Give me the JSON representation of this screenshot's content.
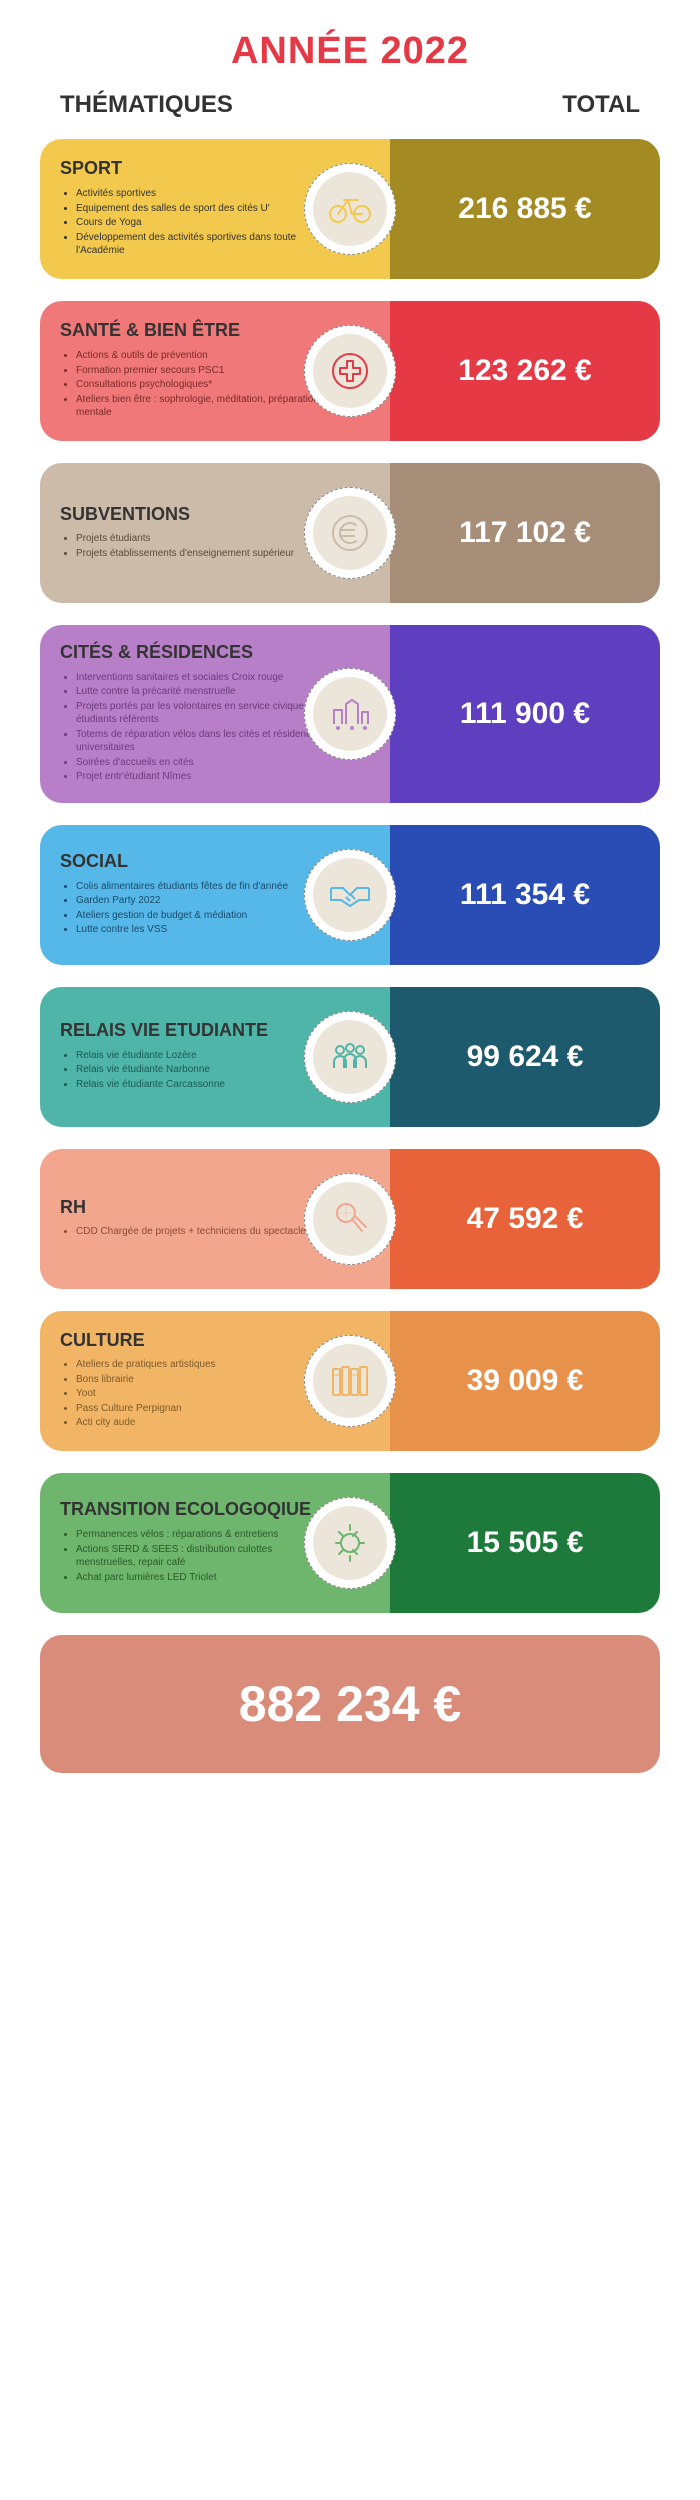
{
  "title": "ANNÉE 2022",
  "title_color": "#e63946",
  "col_left": "THÉMATIQUES",
  "col_right": "TOTAL",
  "header_color": "#333333",
  "icon_bg": "#ece6da",
  "categories": [
    {
      "name": "SPORT",
      "amount": "216 885 €",
      "left_bg": "#f2c94c",
      "right_bg": "#a38a22",
      "title_color": "#333333",
      "text_color": "#333333",
      "icon": "bike",
      "icon_color": "#f2c94c",
      "items": [
        "Activités sportives",
        "Equipement des salles de sport des cités U'",
        "Cours de Yoga",
        "Développement des activités sportives dans toute l'Académie"
      ]
    },
    {
      "name": "SANTÉ & BIEN ÊTRE",
      "amount": "123 262 €",
      "left_bg": "#f07878",
      "right_bg": "#e63946",
      "title_color": "#333333",
      "text_color": "#7a2a2a",
      "icon": "cross",
      "icon_color": "#e63946",
      "items": [
        "Actions & outils de prévention",
        "Formation premier secours PSC1",
        "Consultations psychologiques*",
        "Ateliers bien être : sophrologie, méditation, préparation mentale"
      ]
    },
    {
      "name": "SUBVENTIONS",
      "amount": "117 102 €",
      "left_bg": "#cbbba8",
      "right_bg": "#a68e78",
      "title_color": "#333333",
      "text_color": "#5a4a3a",
      "icon": "euro",
      "icon_color": "#cbbba8",
      "items": [
        "Projets étudiants",
        "Projets établissements d'enseignement supérieur"
      ]
    },
    {
      "name": "CITÉS & RÉSIDENCES",
      "amount": "111 900 €",
      "left_bg": "#b87fc9",
      "right_bg": "#5e3fbf",
      "title_color": "#333333",
      "text_color": "#6a3a7a",
      "icon": "city",
      "icon_color": "#b87fc9",
      "items": [
        "Interventions sanitaires et sociales Croix rouge",
        "Lutte contre la précarité menstruelle",
        "Projets portés par les volontaires en service civique et étudiants référents",
        "Totems de réparation vélos dans les cités et résidences universitaires",
        "Soirées d'accueils en cités",
        "Projet entr'étudiant Nîmes"
      ]
    },
    {
      "name": "SOCIAL",
      "amount": "111 354 €",
      "left_bg": "#56b8e8",
      "right_bg": "#2a4db5",
      "title_color": "#333333",
      "text_color": "#1a4a6a",
      "icon": "handshake",
      "icon_color": "#56b8e8",
      "items": [
        "Colis alimentaires étudiants fêtes de fin d'année",
        "Garden Party 2022",
        "Ateliers gestion de budget & médiation",
        "Lutte contre les VSS"
      ]
    },
    {
      "name": "RELAIS VIE ETUDIANTE",
      "amount": "99 624 €",
      "left_bg": "#4fb5a8",
      "right_bg": "#1e5a6e",
      "title_color": "#333333",
      "text_color": "#1a5a52",
      "icon": "people",
      "icon_color": "#4fb5a8",
      "items": [
        "Relais vie étudiante Lozère",
        "Relais vie étudiante Narbonne",
        "Relais vie étudiante Carcassonne"
      ]
    },
    {
      "name": "RH",
      "amount": "47 592 €",
      "left_bg": "#f2a68e",
      "right_bg": "#e8623a",
      "title_color": "#333333",
      "text_color": "#8a4a3a",
      "icon": "ok",
      "icon_color": "#f2a68e",
      "items": [
        "CDD Chargée de projets + techniciens du spectacle"
      ]
    },
    {
      "name": "CULTURE",
      "amount": "39 009 €",
      "left_bg": "#f2b566",
      "right_bg": "#e8914a",
      "title_color": "#333333",
      "text_color": "#7a5a2a",
      "icon": "books",
      "icon_color": "#f2b566",
      "items": [
        "Ateliers de pratiques artistiques",
        "Bons librairie",
        "Yoot",
        "Pass Culture Perpignan",
        "Acti city aude"
      ]
    },
    {
      "name": "TRANSITION ECOLOGOQIUE",
      "amount": "15 505 €",
      "left_bg": "#6eb56e",
      "right_bg": "#1e7a3a",
      "title_color": "#333333",
      "text_color": "#2a5a2a",
      "icon": "bulb",
      "icon_color": "#6eb56e",
      "items": [
        "Permanences vélos : réparations & entretiens",
        "Actions SERD & SEES : distribution culottes menstruelles, repair café",
        "Achat parc lumières LED Triolet"
      ]
    }
  ],
  "grand_total": "882 234 €",
  "grand_total_bg": "#d98c7a"
}
